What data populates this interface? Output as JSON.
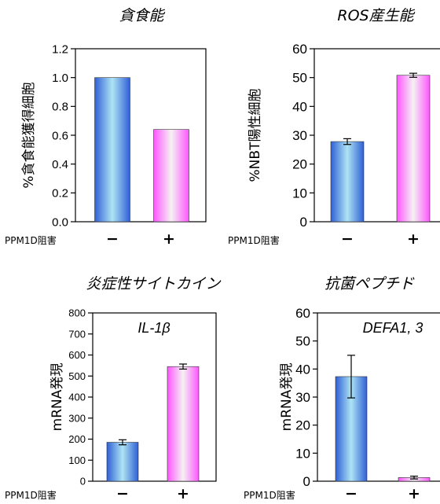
{
  "condition_label": "PPM1D阻害",
  "condition_signs": [
    "−",
    "+"
  ],
  "chart_data": [
    {
      "id": "phago",
      "type": "bar",
      "title": "貪食能",
      "inner_label": "",
      "ylabel": "%貪食能獲得細胞",
      "categories": [
        "−",
        "+"
      ],
      "values": [
        1.0,
        0.64
      ],
      "errors": [
        0,
        0
      ],
      "ylim": [
        0,
        1.2
      ],
      "yticks": [
        "0.0",
        "0.2",
        "0.4",
        "0.6",
        "0.8",
        "1.0",
        "1.2"
      ],
      "colors": [
        "#3d6fe0",
        "#ff66ff"
      ],
      "grid": false,
      "legend": "none"
    },
    {
      "id": "ros",
      "type": "bar",
      "title": "ROS産生能",
      "inner_label": "",
      "ylabel": "%NBT陽性細胞",
      "categories": [
        "−",
        "+"
      ],
      "values": [
        27.8,
        50.8
      ],
      "errors": [
        1.0,
        0.7
      ],
      "ylim": [
        0,
        60
      ],
      "yticks": [
        "0",
        "10",
        "20",
        "30",
        "40",
        "50",
        "60"
      ],
      "colors": [
        "#3d6fe0",
        "#ff66ff"
      ],
      "grid": false,
      "legend": "none"
    },
    {
      "id": "il1b",
      "type": "bar",
      "title": "炎症性サイトカイン",
      "inner_label": "IL-1β",
      "ylabel": "mRNA発現",
      "categories": [
        "−",
        "+"
      ],
      "values": [
        185,
        545
      ],
      "errors": [
        12,
        12
      ],
      "ylim": [
        0,
        800
      ],
      "yticks": [
        "0",
        "100",
        "200",
        "300",
        "400",
        "500",
        "600",
        "700",
        "800"
      ],
      "colors": [
        "#3d6fe0",
        "#ff66ff"
      ],
      "grid": false,
      "legend": "none"
    },
    {
      "id": "defa",
      "type": "bar",
      "title": "抗菌ペプチド",
      "inner_label": "DEFA1, 3",
      "ylabel": "mRNA発現",
      "categories": [
        "−",
        "+"
      ],
      "values": [
        37.3,
        1.3
      ],
      "errors": [
        7.6,
        0.5
      ],
      "ylim": [
        0,
        60
      ],
      "yticks": [
        "0",
        "10",
        "20",
        "30",
        "40",
        "50",
        "60"
      ],
      "colors": [
        "#3d6fe0",
        "#ff66ff"
      ],
      "grid": false,
      "legend": "none"
    }
  ]
}
